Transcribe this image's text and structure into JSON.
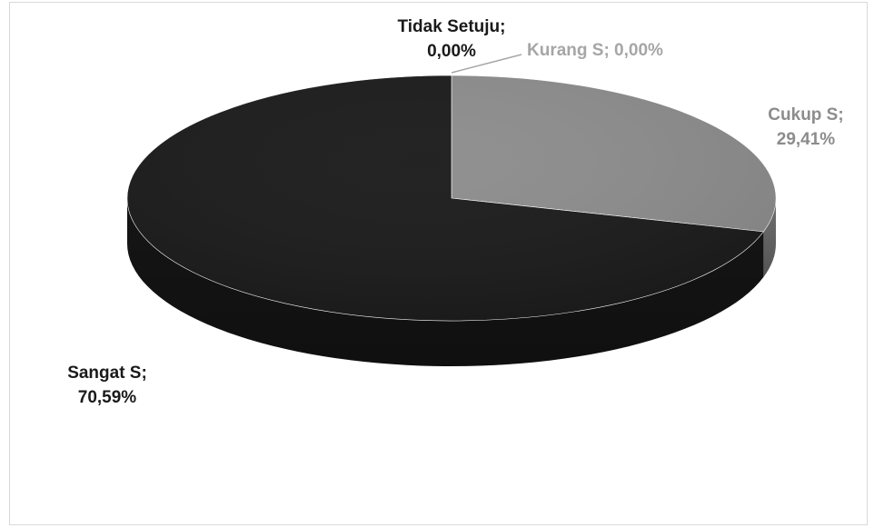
{
  "chart_data": {
    "type": "pie",
    "style": "3d",
    "slices": [
      {
        "label": "Tidak Setuju",
        "value": 0.0,
        "value_label": "0,00%",
        "color": "#1a1a1a",
        "label_color": "#1a1a1a"
      },
      {
        "label": "Kurang S",
        "value": 0.0,
        "value_label": "0,00%",
        "color": "#a0a0a0",
        "label_color": "#a6a6a6"
      },
      {
        "label": "Cukup S",
        "value": 29.41,
        "value_label": "29,41%",
        "color": "#8c8c8c",
        "label_color": "#8c8c8c"
      },
      {
        "label": "Sangat S",
        "value": 70.59,
        "value_label": "70,59%",
        "color": "#1a1a1a",
        "label_color": "#1a1a1a"
      }
    ],
    "data_labels": [
      {
        "lines": [
          "Tidak Setuju;",
          "0,00%"
        ]
      },
      {
        "lines": [
          "Kurang S; 0,00%"
        ]
      },
      {
        "lines": [
          "Cukup S;",
          "29,41%"
        ]
      },
      {
        "lines": [
          "Sangat S;",
          "70,59%"
        ]
      }
    ],
    "legend": "none",
    "title": ""
  }
}
